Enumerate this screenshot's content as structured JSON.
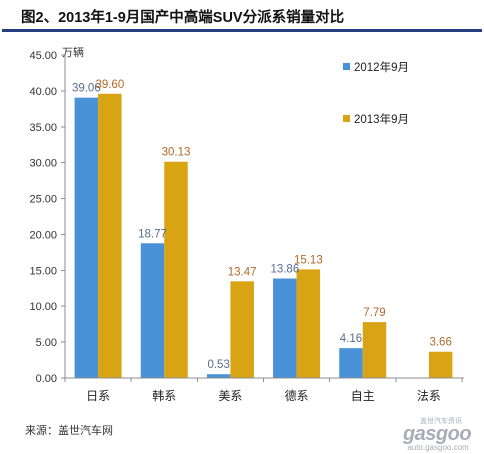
{
  "source": "来源：盖世汽车网",
  "watermark": {
    "cn": "盖世汽车资讯",
    "brand": "gasgoo",
    "url": "auto.gasgoo.com"
  },
  "colors": {
    "title_rule": "#25407C",
    "watermark": "#A7ADB6"
  },
  "chart_data": {
    "type": "bar",
    "title": "图2、2013年1-9月国产中高端SUV分派系销量对比",
    "ylabel": "万辆",
    "ylim": [
      0,
      45
    ],
    "yticks": [
      0,
      5,
      10,
      15,
      20,
      25,
      30,
      35,
      40,
      45
    ],
    "categories": [
      "日系",
      "韩系",
      "美系",
      "德系",
      "自主",
      "法系"
    ],
    "series": [
      {
        "name": "2012年9月",
        "color": "#4A92D8",
        "label_color": "#556F91",
        "values": [
          39.06,
          18.77,
          0.53,
          13.86,
          4.16,
          null
        ]
      },
      {
        "name": "2013年9月",
        "color": "#D8A414",
        "label_color": "#B2682A",
        "values": [
          39.6,
          30.13,
          13.47,
          15.13,
          7.79,
          3.66
        ]
      }
    ],
    "data_labels": true,
    "grid": false,
    "legend": "top-right"
  }
}
